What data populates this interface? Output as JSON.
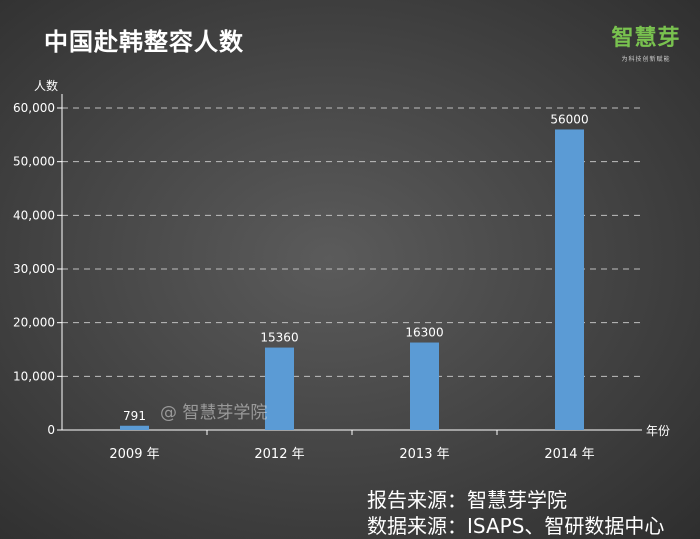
{
  "title": "中国赴韩整容人数",
  "brand": {
    "name": "智慧芽",
    "tagline": "为科技创新赋能"
  },
  "watermark": "@ 智慧芽学院",
  "sources": [
    "报告来源：智慧芽学院",
    "数据来源：ISAPS、智研数据中心"
  ],
  "colors": {
    "bar": "#5b9bd5",
    "grid": "#bfbfbf",
    "brand": "#79c24f"
  },
  "chart_data": {
    "type": "bar",
    "title": "中国赴韩整容人数",
    "xlabel": "年份",
    "ylabel": "人数",
    "categories": [
      "2009 年",
      "2012 年",
      "2013 年",
      "2014 年"
    ],
    "values": [
      791,
      15360,
      16300,
      56000
    ],
    "data_labels": [
      "791",
      "15360",
      "16300",
      "56000"
    ],
    "ylim": [
      0,
      60000
    ],
    "yticks": [
      0,
      10000,
      20000,
      30000,
      40000,
      50000,
      60000
    ],
    "ytick_labels": [
      "0",
      "10,000",
      "20,000",
      "30,000",
      "40,000",
      "50,000",
      "60,000"
    ],
    "grid": true,
    "grid_style": "dashed",
    "legend": "none"
  }
}
